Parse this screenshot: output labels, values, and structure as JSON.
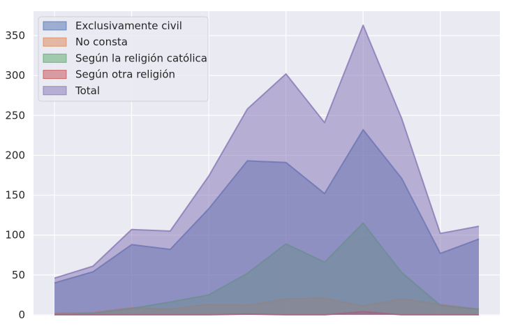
{
  "chart_data": {
    "type": "area",
    "title": "",
    "xlabel": "",
    "ylabel": "",
    "x": [
      1,
      2,
      3,
      4,
      5,
      6,
      7,
      8,
      9,
      10,
      11,
      12
    ],
    "ylim": [
      0,
      375
    ],
    "yticks": [
      0,
      50,
      100,
      150,
      200,
      250,
      300,
      350
    ],
    "grid": true,
    "legend_position": "top-left",
    "series": [
      {
        "name": "Exclusivamente civil",
        "color": "#4c72b0",
        "values": [
          40,
          54,
          88,
          82,
          133,
          193,
          191,
          152,
          232,
          171,
          77,
          95
        ]
      },
      {
        "name": "No consta",
        "color": "#dd8452",
        "values": [
          2,
          3,
          9,
          7,
          13,
          12,
          20,
          21,
          11,
          20,
          13,
          7
        ]
      },
      {
        "name": "Según la religión católica",
        "color": "#55a868",
        "values": [
          1,
          2,
          8,
          16,
          25,
          52,
          89,
          66,
          115,
          53,
          12,
          7
        ]
      },
      {
        "name": "Según otra religión",
        "color": "#c44e52",
        "values": [
          0,
          0,
          0,
          0,
          0,
          1,
          0,
          0,
          4,
          0,
          0,
          0
        ]
      },
      {
        "name": "Total",
        "color": "#8172b3",
        "values": [
          46,
          61,
          107,
          105,
          174,
          258,
          302,
          241,
          363,
          246,
          102,
          111
        ]
      }
    ]
  }
}
